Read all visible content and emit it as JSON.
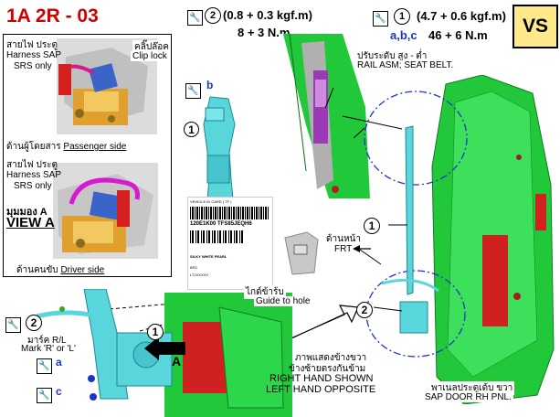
{
  "header": {
    "title": "1A 2R - 03",
    "badge": "VS"
  },
  "torque_left": {
    "num": "2",
    "kgf": "(0.8 + 0.3 kgf.m)",
    "nm": "8 + 3 N.m"
  },
  "torque_right": {
    "num": "1",
    "kgf": "(4.7 + 0.6 kgf.m)",
    "letters": "a,b,c",
    "nm": "46 + 6 N.m"
  },
  "inset": {
    "harness_th_1": "สายไฟ ประตู",
    "harness_en_1a": "Harness SAP",
    "harness_en_1b": "SRS only",
    "clip_th": "คลิ๊ปล๊อค",
    "clip_en": "Clip lock",
    "passenger_th": "ด้านผู้โดยสาร",
    "passenger_en": "Passenger side",
    "harness_th_2": "สายไฟ ประตู",
    "harness_en_2a": "Harness SAP",
    "harness_en_2b": "SRS only",
    "view_th": "มุมมอง A",
    "view_en": "VIEW A",
    "driver_th": "ด้านคนขับ",
    "driver_en": "Driver side"
  },
  "callouts": {
    "rail_th": "ปรับระดับ  สูง - ต่ำ",
    "rail_en": "RAIL ASM; SEAT BELT.",
    "front_th": "ด้านหน้า",
    "front_en": "FRT",
    "guide_th": "ไกด์ข้าร้บ",
    "guide_en": "Guide to hole",
    "mark_th": "มาร์ค R/L",
    "mark_en": "Mark 'R' or 'L'",
    "view_a": "A",
    "rh_th_1": "ภาพแสดงข้างขวา",
    "rh_th_2": "ข้างซ้ายตรงกันข้าม",
    "rh_en_1": "RIGHT HAND SHOWN",
    "rh_en_2": "LEFT HAND OPPOSITE",
    "door_th": "พาเนลประตูเด้บ ขวา",
    "door_en": "SAP DOOR RH PNL.",
    "b": "b",
    "a": "a",
    "c": "c",
    "num1": "1",
    "num2": "2"
  },
  "label_sheet": {
    "line1": "VEHICLE ID CARD    ( TF )",
    "line2": "120E1K00   TFS85JEQH6",
    "line3": "SILKY WHITE PEARL",
    "small_a": "BFD",
    "small_b": "LT2XXXXX"
  },
  "colors": {
    "title_red": "#d00000",
    "badge_yellow": "#ffe98a",
    "belt_cyan": "#59d6dc",
    "door_green": "#21c83a",
    "accent_blue": "#1a35c8"
  }
}
